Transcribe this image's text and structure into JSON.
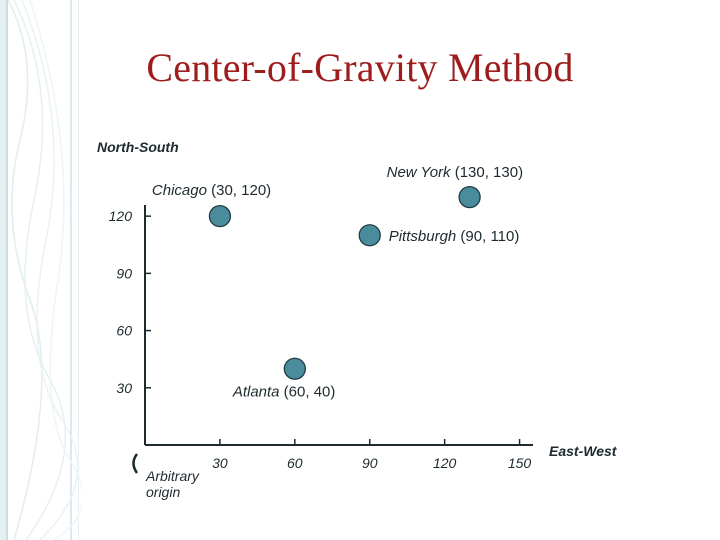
{
  "title": "Center-of-Gravity Method",
  "chart_data": {
    "type": "scatter",
    "title": "Center-of-Gravity Method",
    "xlabel": "East-West",
    "ylabel": "North-South",
    "xlim": [
      0,
      150
    ],
    "ylim": [
      0,
      130
    ],
    "x_ticks": [
      30,
      60,
      90,
      120,
      150
    ],
    "y_ticks": [
      30,
      60,
      90,
      120
    ],
    "origin_label": "Arbitrary origin",
    "points": [
      {
        "name": "Chicago",
        "coords": "(30, 120)",
        "x": 30,
        "y": 120
      },
      {
        "name": "New York",
        "coords": "(130, 130)",
        "x": 130,
        "y": 130
      },
      {
        "name": "Pittsburgh",
        "coords": "(90, 110)",
        "x": 90,
        "y": 110
      },
      {
        "name": "Atlanta",
        "coords": "(60, 40)",
        "x": 60,
        "y": 40
      }
    ],
    "marker_color": "#4a8c9c",
    "grid": false
  },
  "colors": {
    "title": "#9e1c1c",
    "text": "#1e2a2e",
    "marker": "#4a8c9c",
    "marker_stroke": "#203b44",
    "decor": "#d9e8ec"
  }
}
